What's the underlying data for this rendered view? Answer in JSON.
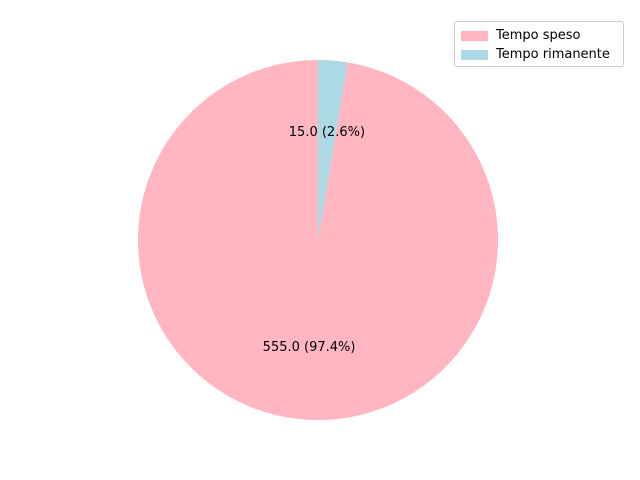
{
  "chart_data": {
    "type": "pie",
    "title": "",
    "start_angle_deg": 90,
    "direction": "counterclockwise",
    "slices": [
      {
        "name": "Tempo speso",
        "value": 555.0,
        "label": "555.0 (97.4%)",
        "color": "#ffb6c1"
      },
      {
        "name": "Tempo rimanente",
        "value": 15.0,
        "label": "15.0 (2.6%)",
        "color": "#add8e6"
      }
    ],
    "legend": {
      "position": "top-right",
      "entries": [
        "Tempo speso",
        "Tempo rimanente"
      ]
    }
  }
}
